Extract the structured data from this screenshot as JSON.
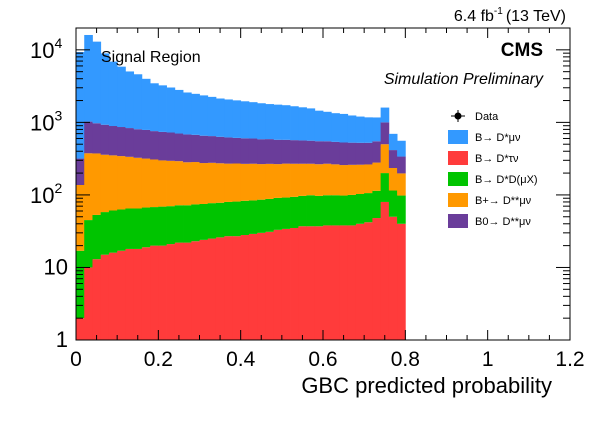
{
  "chart_data": {
    "type": "area",
    "stacked": true,
    "log_y": true,
    "grid": false,
    "header_note": "6.4 fb",
    "header_note_sup": "-1",
    "header_note_tail": "(13 TeV)",
    "experiment": "CMS",
    "status": "Simulation Preliminary",
    "region_label": "Signal Region",
    "xlabel": "GBC predicted probability",
    "ylabel": "",
    "xlim": [
      0,
      1.2
    ],
    "ylim": [
      1,
      20000
    ],
    "x_ticks": [
      "0",
      "0.2",
      "0.4",
      "0.6",
      "0.8",
      "1",
      "1.2"
    ],
    "bin_width": 0.02,
    "legend_position": "top-right",
    "legend": [
      {
        "key": "data",
        "label": "Data"
      },
      {
        "key": "dmunu",
        "label": "B→ D*μν"
      },
      {
        "key": "dtaunu",
        "label": "B→ D*τν"
      },
      {
        "key": "ddx",
        "label": "B→ D*D(μX)"
      },
      {
        "key": "bplus",
        "label": "B+→ D**μν"
      },
      {
        "key": "bzero",
        "label": "B0→ D**μν"
      }
    ],
    "x": [
      0.01,
      0.03,
      0.05,
      0.07,
      0.09,
      0.11,
      0.13,
      0.15,
      0.17,
      0.19,
      0.21,
      0.23,
      0.25,
      0.27,
      0.29,
      0.31,
      0.33,
      0.35,
      0.37,
      0.39,
      0.41,
      0.43,
      0.45,
      0.47,
      0.49,
      0.51,
      0.53,
      0.55,
      0.57,
      0.59,
      0.61,
      0.63,
      0.65,
      0.67,
      0.69,
      0.71,
      0.73,
      0.75,
      0.77,
      0.79
    ],
    "series": [
      {
        "key": "dtaunu",
        "name": "B→ D*τν",
        "color": "#ff3b3b",
        "values": [
          2,
          10,
          13,
          15,
          16,
          17,
          18,
          18,
          19,
          20,
          20,
          21,
          22,
          22,
          23,
          24,
          25,
          26,
          27,
          27,
          28,
          29,
          30,
          31,
          33,
          34,
          35,
          37,
          37,
          37,
          38,
          38,
          38,
          38,
          40,
          42,
          48,
          80,
          50,
          40
        ]
      },
      {
        "key": "ddx",
        "name": "B→ D*D(μX)",
        "color": "#00c400",
        "values": [
          15,
          35,
          40,
          43,
          45,
          46,
          47,
          47,
          48,
          48,
          49,
          49,
          50,
          50,
          51,
          51,
          52,
          52,
          53,
          54,
          55,
          55,
          56,
          57,
          58,
          58,
          59,
          60,
          62,
          60,
          61,
          61,
          60,
          62,
          63,
          64,
          66,
          120,
          65,
          58
        ]
      },
      {
        "key": "bplus",
        "name": "B+→ D**μν",
        "color": "#ff9900",
        "values": [
          120,
          330,
          320,
          300,
          290,
          280,
          270,
          260,
          250,
          240,
          230,
          225,
          220,
          210,
          210,
          200,
          200,
          195,
          190,
          190,
          185,
          185,
          180,
          180,
          175,
          178,
          175,
          172,
          170,
          168,
          170,
          165,
          160,
          160,
          158,
          157,
          165,
          300,
          120,
          100
        ]
      },
      {
        "key": "bzero",
        "name": "B0→ D**μν",
        "color": "#6a3d9a",
        "values": [
          180,
          650,
          600,
          570,
          540,
          520,
          500,
          480,
          470,
          450,
          440,
          430,
          410,
          400,
          390,
          380,
          370,
          360,
          350,
          340,
          335,
          330,
          320,
          320,
          310,
          305,
          300,
          295,
          290,
          285,
          280,
          275,
          270,
          265,
          262,
          260,
          270,
          500,
          180,
          140
        ]
      },
      {
        "key": "dmunu",
        "name": "B→ D*μν",
        "color": "#3399ff",
        "values": [
          9000,
          15000,
          12000,
          8000,
          6000,
          5000,
          4200,
          3800,
          3200,
          2700,
          2500,
          2300,
          2100,
          1900,
          1800,
          1700,
          1600,
          1500,
          1450,
          1400,
          1350,
          1300,
          1250,
          1200,
          1180,
          1150,
          1100,
          1050,
          1000,
          900,
          850,
          800,
          780,
          720,
          680,
          650,
          620,
          600,
          280,
          220
        ]
      }
    ]
  }
}
